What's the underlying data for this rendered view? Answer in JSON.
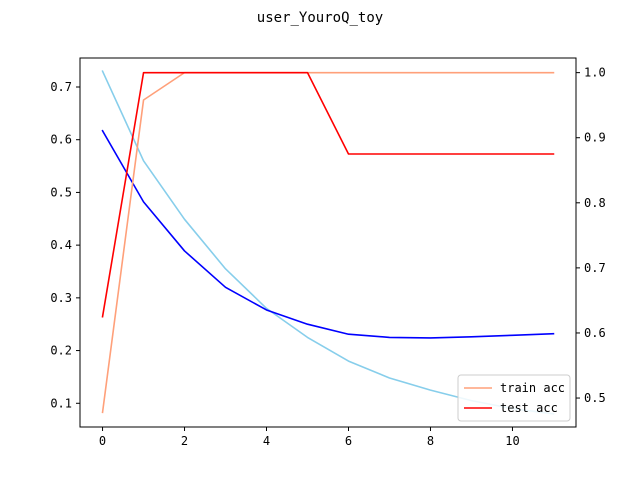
{
  "chart_data": {
    "type": "line",
    "title": "user_YouroQ_toy",
    "x_ticks": [
      0,
      2,
      4,
      6,
      8,
      10
    ],
    "xlim": [
      -0.55,
      11.55
    ],
    "left_axis": {
      "ylim": [
        0.055,
        0.755
      ],
      "ticks": [
        0.1,
        0.2,
        0.3,
        0.4,
        0.5,
        0.6,
        0.7
      ],
      "tick_labels": [
        "0.1",
        "0.2",
        "0.3",
        "0.4",
        "0.5",
        "0.6",
        "0.7"
      ]
    },
    "right_axis": {
      "ylim": [
        0.4555,
        1.0225
      ],
      "ticks": [
        0.5,
        0.6,
        0.7,
        0.8,
        0.9,
        1.0
      ],
      "tick_labels": [
        "0.5",
        "0.6",
        "0.7",
        "0.8",
        "0.9",
        "1.0"
      ]
    },
    "series": [
      {
        "name": "",
        "axis": "left",
        "color": "#87CEEB",
        "x": [
          0,
          1,
          2,
          3,
          4,
          5,
          6,
          7,
          8,
          9,
          10,
          11
        ],
        "values": [
          0.73,
          0.56,
          0.449,
          0.355,
          0.28,
          0.225,
          0.18,
          0.148,
          0.125,
          0.105,
          0.09,
          0.08
        ]
      },
      {
        "name": "",
        "axis": "left",
        "color": "#0000FF",
        "x": [
          0,
          1,
          2,
          3,
          4,
          5,
          6,
          7,
          8,
          9,
          10,
          11
        ],
        "values": [
          0.617,
          0.482,
          0.389,
          0.32,
          0.277,
          0.25,
          0.231,
          0.225,
          0.224,
          0.226,
          0.229,
          0.232
        ]
      },
      {
        "name": "train acc",
        "axis": "right",
        "color": "#FFA07A",
        "x": [
          0,
          1,
          2,
          3,
          4,
          5,
          6,
          7,
          8,
          9,
          10,
          11
        ],
        "values": [
          0.478,
          0.958,
          1.0,
          1.0,
          1.0,
          1.0,
          1.0,
          1.0,
          1.0,
          1.0,
          1.0,
          1.0
        ]
      },
      {
        "name": "test acc",
        "axis": "right",
        "color": "#FF0000",
        "x": [
          0,
          1,
          2,
          3,
          4,
          5,
          6,
          7,
          8,
          9,
          10,
          11
        ],
        "values": [
          0.625,
          1.0,
          1.0,
          1.0,
          1.0,
          1.0,
          0.875,
          0.875,
          0.875,
          0.875,
          0.875,
          0.875
        ]
      }
    ],
    "legend": {
      "placement": "lower right",
      "entries": [
        {
          "label": "train acc",
          "color": "#FFA07A"
        },
        {
          "label": "test acc",
          "color": "#FF0000"
        }
      ]
    },
    "grid": false
  }
}
